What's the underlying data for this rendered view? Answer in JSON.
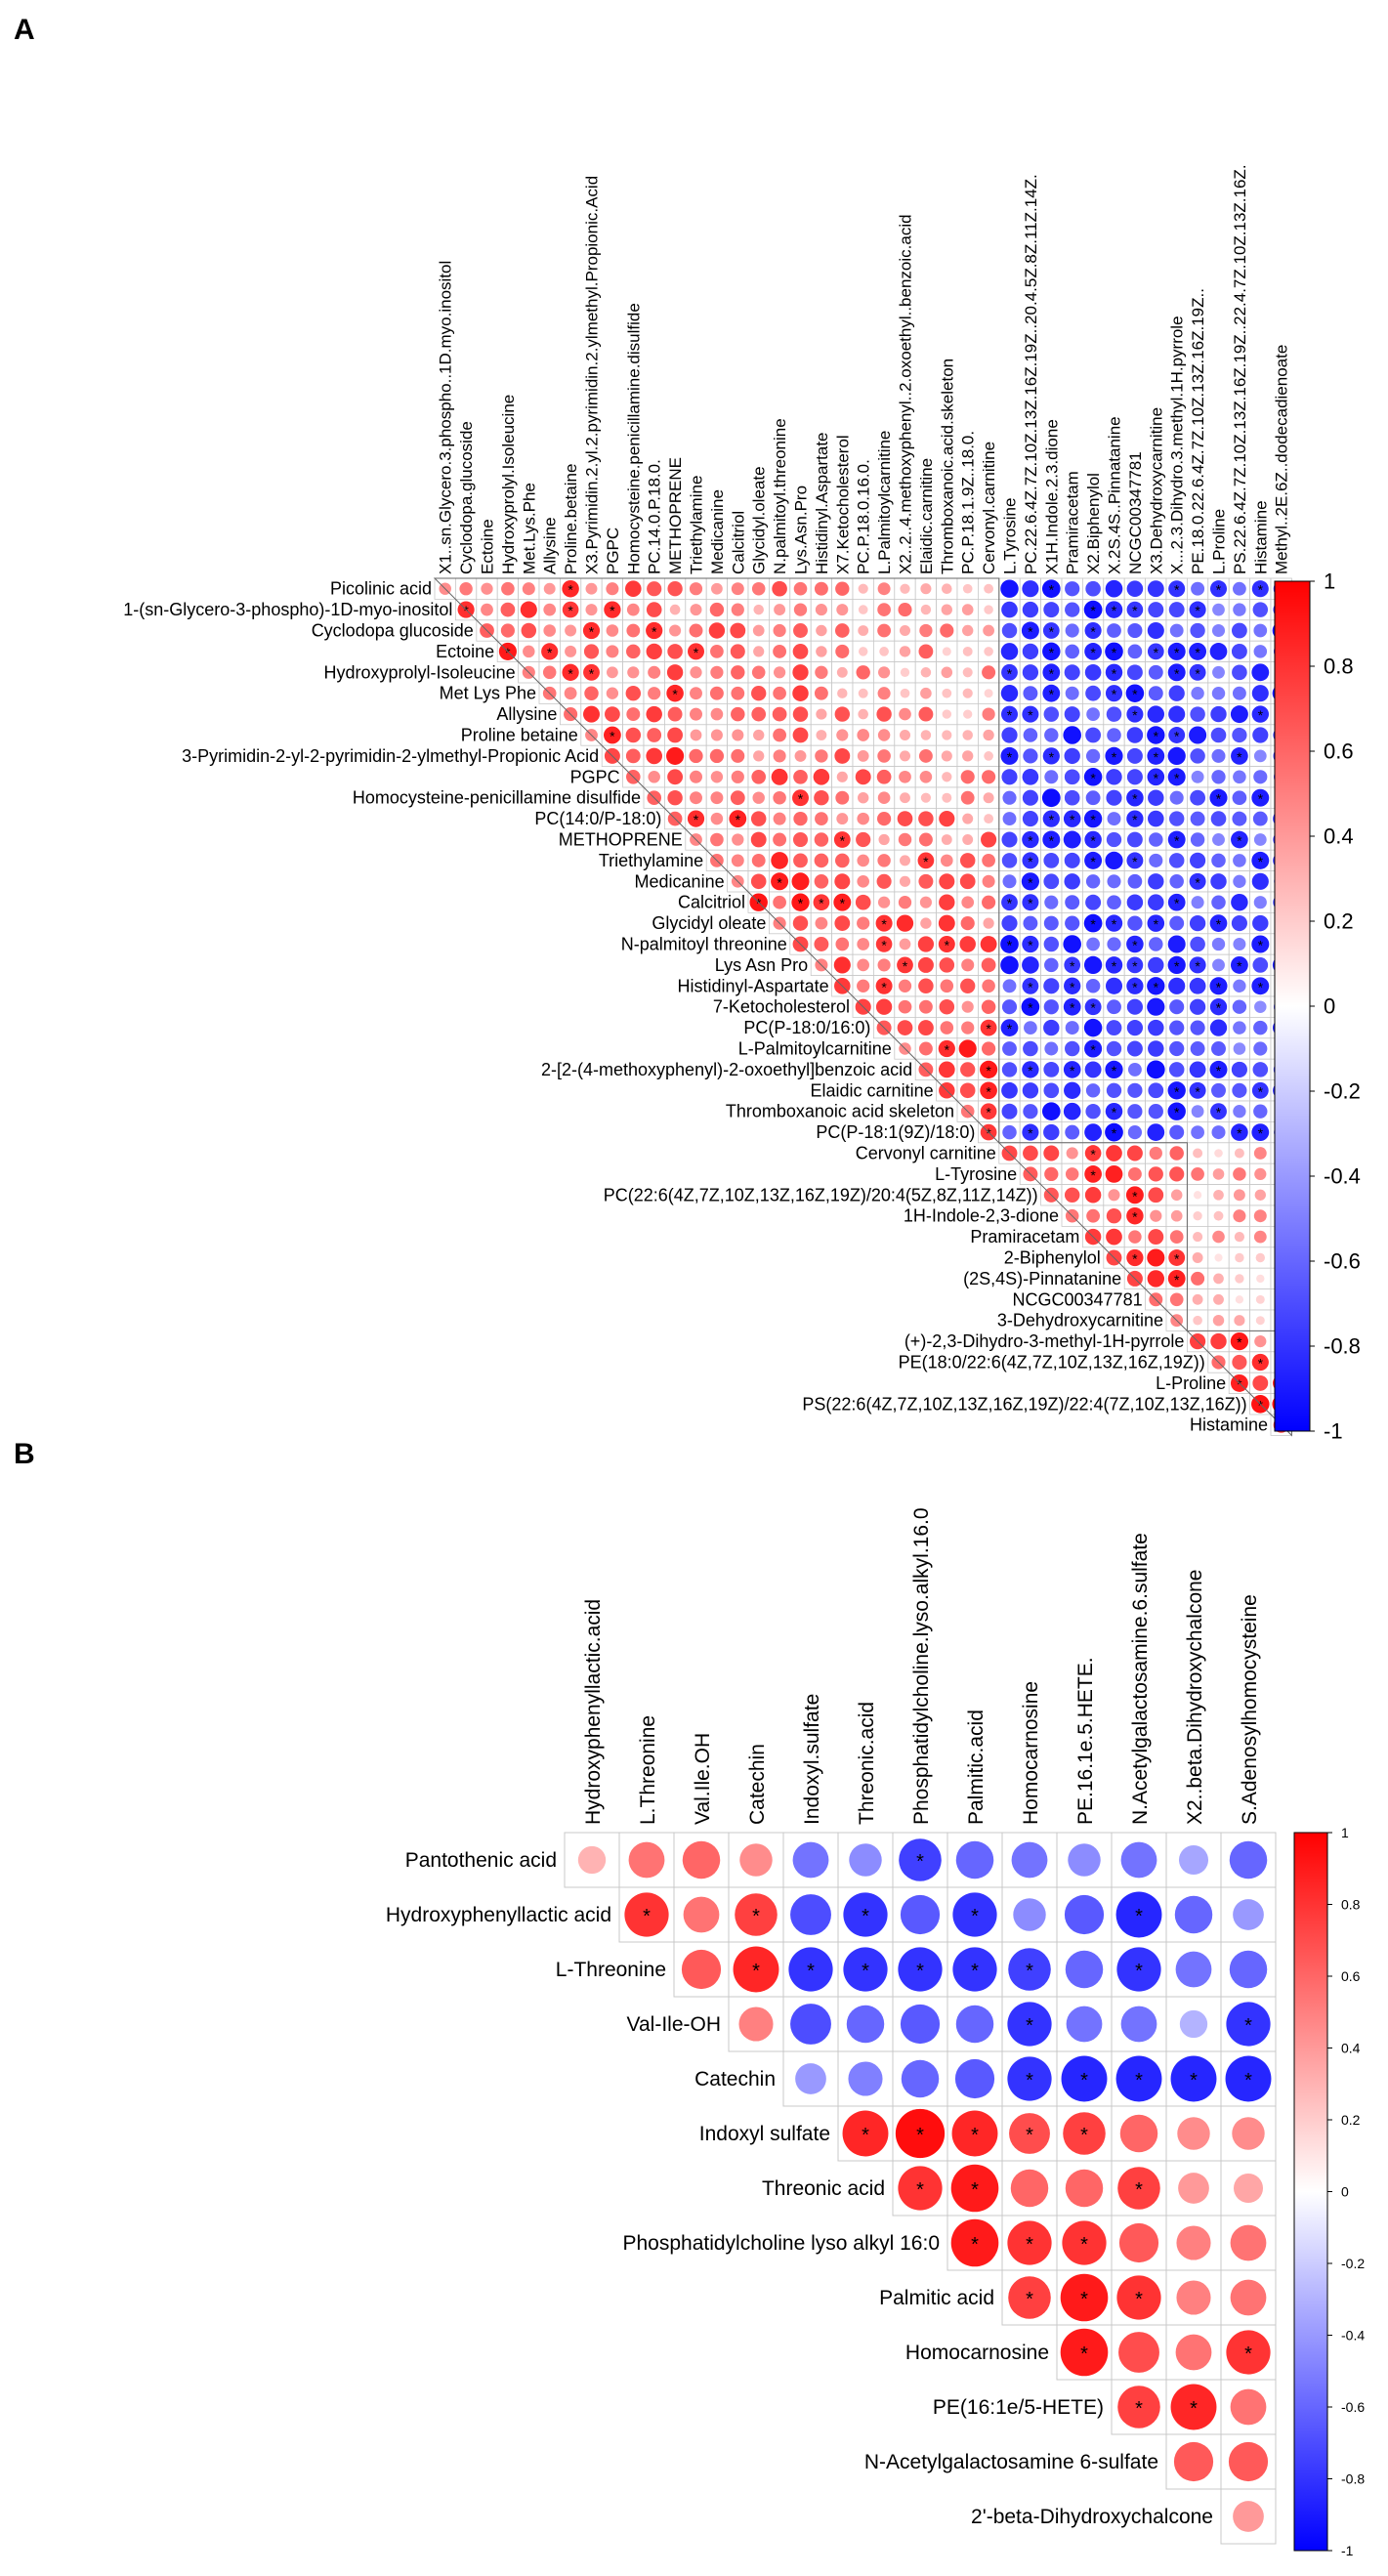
{
  "panels": {
    "a": {
      "letter": "A"
    },
    "b": {
      "letter": "B"
    }
  },
  "colors": {
    "negative": "#0000ff",
    "zero": "#ffffff",
    "positive": "#ff0000",
    "grid": "#bbbbbb"
  },
  "chart_data": [
    {
      "type": "heatmap",
      "panel": "A",
      "shape": "upper-triangle correlation matrix (circles, * = significant)",
      "row_labels": [
        "Picolinic acid",
        "1-(sn-Glycero-3-phospho)-1D-myo-inositol",
        "Cyclodopa glucoside",
        "Ectoine",
        "Hydroxyprolyl-Isoleucine",
        "Met Lys Phe",
        "Allysine",
        "Proline betaine",
        "3-Pyrimidin-2-yl-2-pyrimidin-2-ylmethyl-Propionic Acid",
        "PGPC",
        "Homocysteine-penicillamine disulfide",
        "PC(14:0/P-18:0)",
        "METHOPRENE",
        "Triethylamine",
        "Medicanine",
        "Calcitriol",
        "Glycidyl oleate",
        "N-palmitoyl threonine",
        "Lys Asn Pro",
        "Histidinyl-Aspartate",
        "7-Ketocholesterol",
        "PC(P-18:0/16:0)",
        "L-Palmitoylcarnitine",
        "2-[2-(4-methoxyphenyl)-2-oxoethyl]benzoic acid",
        "Elaidic carnitine",
        "Thromboxanoic acid skeleton",
        "PC(P-18:1(9Z)/18:0)",
        "Cervonyl carnitine",
        "L-Tyrosine",
        "PC(22:6(4Z,7Z,10Z,13Z,16Z,19Z)/20:4(5Z,8Z,11Z,14Z))",
        "1H-Indole-2,3-dione",
        "Pramiracetam",
        "2-Biphenylol",
        "(2S,4S)-Pinnatanine",
        "NCGC00347781",
        "3-Dehydroxycarnitine",
        "(+)-2,3-Dihydro-3-methyl-1H-pyrrole",
        "PE(18:0/22:6(4Z,7Z,10Z,13Z,16Z,19Z))",
        "L-Proline",
        "PS(22:6(4Z,7Z,10Z,13Z,16Z,19Z)/22:4(7Z,10Z,13Z,16Z))",
        "Histamine"
      ],
      "column_labels": [
        "X1..sn.Glycero.3.phospho..1D.myo.inositol",
        "Cyclodopa.glucoside",
        "Ectoine",
        "Hydroxyprolyl.Isoleucine",
        "Met.Lys.Phe",
        "Allysine",
        "Proline.betaine",
        "X3.Pyrimidin.2.yl.2.pyrimidin.2.ylmethyl.Propionic.Acid",
        "PGPC",
        "Homocysteine.penicillamine.disulfide",
        "PC.14.0.P.18.0.",
        "METHOPRENE",
        "Triethylamine",
        "Medicanine",
        "Calcitriol",
        "Glycidyl.oleate",
        "N.palmitoyl.threonine",
        "Lys.Asn.Pro",
        "Histidinyl.Aspartate",
        "X7.Ketocholesterol",
        "PC.P.18.0.16.0.",
        "L.Palmitoylcarnitine",
        "X2..2..4.methoxyphenyl..2.oxoethyl..benzoic.acid",
        "Elaidic.carnitine",
        "Thromboxanoic.acid.skeleton",
        "PC.P.18.1.9Z..18.0.",
        "Cervonyl.carnitine",
        "L.Tyrosine",
        "PC.22.6.4Z.7Z.10Z.13Z.16Z.19Z..20.4.5Z.8Z.11Z.14Z.",
        "X1H.Indole.2.3.dione",
        "Pramiracetam",
        "X2.Biphenylol",
        "X.2S.4S..Pinnatanine",
        "NCGC00347781",
        "X3.Dehydroxycarnitine",
        "X...2.3.Dihydro.3.methyl.1H.pyrrole",
        "PE.18.0.22.6.4Z.7Z.10Z.13Z.16Z.19Z..",
        "L.Proline",
        "PS.22.6.4Z.7Z.10Z.13Z.16Z.19Z..22.4.7Z.10Z.13Z.16Z.",
        "Histamine",
        "Methyl..2E.6Z..dodecadienoate"
      ],
      "cluster_boundaries": [
        27,
        36
      ],
      "color_range": [
        -1,
        1
      ],
      "colorbar_ticks": [
        "1",
        "0.8",
        "0.6",
        "0.4",
        "0.2",
        "0",
        "-0.2",
        "-0.4",
        "-0.6",
        "-0.8",
        "-1"
      ],
      "significance_marker": "*"
    },
    {
      "type": "heatmap",
      "panel": "B",
      "shape": "upper-triangle correlation matrix (circles, * = significant)",
      "row_labels": [
        "Pantothenic acid",
        "Hydroxyphenyllactic acid",
        "L-Threonine",
        "Val-Ile-OH",
        "Catechin",
        "Indoxyl sulfate",
        "Threonic acid",
        "Phosphatidylcholine lyso alkyl 16:0",
        "Palmitic acid",
        "Homocarnosine",
        "PE(16:1e/5-HETE)",
        "N-Acetylgalactosamine 6-sulfate",
        "2'-beta-Dihydroxychalcone"
      ],
      "column_labels": [
        "Hydroxyphenyllactic.acid",
        "L.Threonine",
        "Val.Ile.OH",
        "Catechin",
        "Indoxyl.sulfate",
        "Threonic.acid",
        "Phosphatidylcholine.lyso.alkyl.16.0",
        "Palmitic.acid",
        "Homocarnosine",
        "PE.16.1e.5.HETE.",
        "N.Acetylgalactosamine.6.sulfate",
        "X2..beta.Dihydroxychalcone",
        "S.Adenosylhomocysteine"
      ],
      "color_range": [
        -1,
        1
      ],
      "colorbar_ticks": [
        "1",
        "0.8",
        "0.6",
        "0.4",
        "0.2",
        "0",
        "-0.2",
        "-0.4",
        "-0.6",
        "-0.8",
        "-1"
      ],
      "significance_marker": "*",
      "values": [
        [
          0.3,
          0.55,
          0.6,
          0.45,
          -0.55,
          -0.45,
          -0.75,
          -0.6,
          -0.55,
          -0.45,
          -0.55,
          -0.35,
          -0.6
        ],
        [
          null,
          0.8,
          0.55,
          0.75,
          -0.7,
          -0.8,
          -0.65,
          -0.8,
          -0.45,
          -0.65,
          -0.85,
          -0.6,
          -0.4
        ],
        [
          null,
          null,
          0.65,
          0.85,
          -0.8,
          -0.8,
          -0.8,
          -0.8,
          -0.75,
          -0.6,
          -0.8,
          -0.55,
          -0.6
        ],
        [
          null,
          null,
          null,
          0.5,
          -0.7,
          -0.6,
          -0.65,
          -0.6,
          -0.8,
          -0.55,
          -0.55,
          -0.3,
          -0.8
        ],
        [
          null,
          null,
          null,
          null,
          -0.4,
          -0.5,
          -0.6,
          -0.65,
          -0.8,
          -0.85,
          -0.85,
          -0.85,
          -0.85
        ],
        [
          null,
          null,
          null,
          null,
          null,
          0.85,
          0.95,
          0.85,
          0.7,
          0.75,
          0.6,
          0.45,
          0.45
        ],
        [
          null,
          null,
          null,
          null,
          null,
          null,
          0.8,
          0.9,
          0.6,
          0.6,
          0.75,
          0.4,
          0.35
        ],
        [
          null,
          null,
          null,
          null,
          null,
          null,
          null,
          0.9,
          0.8,
          0.8,
          0.65,
          0.5,
          0.55
        ],
        [
          null,
          null,
          null,
          null,
          null,
          null,
          null,
          null,
          0.75,
          0.9,
          0.8,
          0.5,
          0.55
        ],
        [
          null,
          null,
          null,
          null,
          null,
          null,
          null,
          null,
          null,
          0.9,
          0.7,
          0.55,
          0.8
        ],
        [
          null,
          null,
          null,
          null,
          null,
          null,
          null,
          null,
          null,
          null,
          0.75,
          0.85,
          0.55
        ],
        [
          null,
          null,
          null,
          null,
          null,
          null,
          null,
          null,
          null,
          null,
          null,
          0.65,
          0.65
        ],
        [
          null,
          null,
          null,
          null,
          null,
          null,
          null,
          null,
          null,
          null,
          null,
          null,
          0.4
        ]
      ],
      "significant": [
        [
          0,
          0,
          0,
          0,
          0,
          0,
          1,
          0,
          0,
          0,
          0,
          0,
          0
        ],
        [
          0,
          1,
          0,
          1,
          0,
          1,
          0,
          1,
          0,
          0,
          1,
          0,
          0
        ],
        [
          0,
          0,
          0,
          1,
          1,
          1,
          1,
          1,
          1,
          0,
          1,
          0,
          0
        ],
        [
          0,
          0,
          0,
          0,
          0,
          0,
          0,
          0,
          1,
          0,
          0,
          0,
          1
        ],
        [
          0,
          0,
          0,
          0,
          0,
          0,
          0,
          0,
          1,
          1,
          1,
          1,
          1
        ],
        [
          0,
          0,
          0,
          0,
          0,
          1,
          1,
          1,
          1,
          1,
          0,
          0,
          0
        ],
        [
          0,
          0,
          0,
          0,
          0,
          0,
          1,
          1,
          0,
          0,
          1,
          0,
          0
        ],
        [
          0,
          0,
          0,
          0,
          0,
          0,
          0,
          1,
          1,
          1,
          0,
          0,
          0
        ],
        [
          0,
          0,
          0,
          0,
          0,
          0,
          0,
          0,
          1,
          1,
          1,
          0,
          0
        ],
        [
          0,
          0,
          0,
          0,
          0,
          0,
          0,
          0,
          0,
          1,
          0,
          0,
          1
        ],
        [
          0,
          0,
          0,
          0,
          0,
          0,
          0,
          0,
          0,
          0,
          1,
          1,
          0
        ],
        [
          0,
          0,
          0,
          0,
          0,
          0,
          0,
          0,
          0,
          0,
          0,
          0,
          0
        ],
        [
          0,
          0,
          0,
          0,
          0,
          0,
          0,
          0,
          0,
          0,
          0,
          0,
          0
        ]
      ]
    }
  ]
}
